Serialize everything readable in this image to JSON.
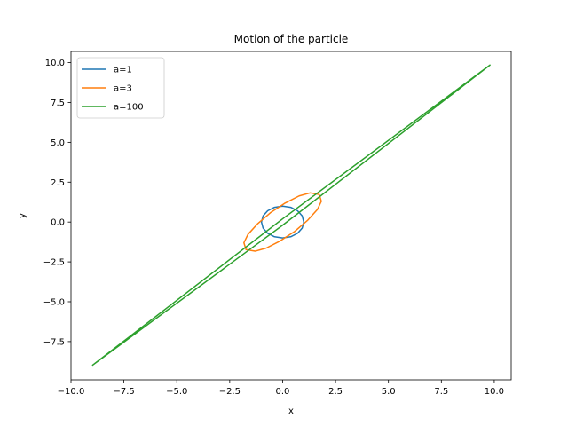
{
  "chart_data": {
    "type": "line",
    "title": "Motion of the particle",
    "xlabel": "x",
    "ylabel": "y",
    "xlim": [
      -10.0,
      10.8
    ],
    "ylim": [
      -9.9,
      10.7
    ],
    "xticks": [
      -10.0,
      -7.5,
      -5.0,
      -2.5,
      0.0,
      2.5,
      5.0,
      7.5,
      10.0
    ],
    "xtick_labels": [
      "−10.0",
      "−7.5",
      "−5.0",
      "−2.5",
      "0.0",
      "2.5",
      "5.0",
      "7.5",
      "10.0"
    ],
    "yticks": [
      -7.5,
      -5.0,
      -2.5,
      0.0,
      2.5,
      5.0,
      7.5,
      10.0
    ],
    "ytick_labels": [
      "−7.5",
      "−5.0",
      "−2.5",
      "0.0",
      "2.5",
      "5.0",
      "7.5",
      "10.0"
    ],
    "grid": false,
    "legend_position": "top-left",
    "series": [
      {
        "name": "a=1",
        "color": "#1f77b4",
        "x": [
          1.0,
          0.924,
          0.707,
          0.383,
          0.0,
          -0.383,
          -0.707,
          -0.924,
          -1.0,
          -0.924,
          -0.707,
          -0.383,
          0.0,
          0.383,
          0.707,
          0.924,
          1.0
        ],
        "y": [
          0.0,
          0.383,
          0.707,
          0.924,
          1.0,
          0.924,
          0.707,
          0.383,
          0.0,
          -0.383,
          -0.707,
          -0.924,
          -1.0,
          -0.924,
          -0.707,
          -0.383,
          0.0
        ]
      },
      {
        "name": "a=3",
        "color": "#ff7f0e",
        "x": [
          1.73,
          1.83,
          1.64,
          1.19,
          0.58,
          -0.12,
          -0.78,
          -1.3,
          -1.73,
          -1.83,
          -1.64,
          -1.19,
          -0.58,
          0.12,
          0.78,
          1.3,
          1.73
        ],
        "y": [
          1.73,
          1.3,
          0.78,
          0.12,
          -0.58,
          -1.19,
          -1.64,
          -1.83,
          -1.73,
          -1.3,
          -0.78,
          -0.12,
          0.58,
          1.19,
          1.64,
          1.83,
          1.73
        ]
      },
      {
        "name": "a=100",
        "color": "#2ca02c",
        "x": [
          -9.0,
          0.0,
          9.8,
          0.0,
          -9.0
        ],
        "y": [
          -9.0,
          0.2,
          9.85,
          -0.2,
          -9.0
        ]
      }
    ]
  }
}
